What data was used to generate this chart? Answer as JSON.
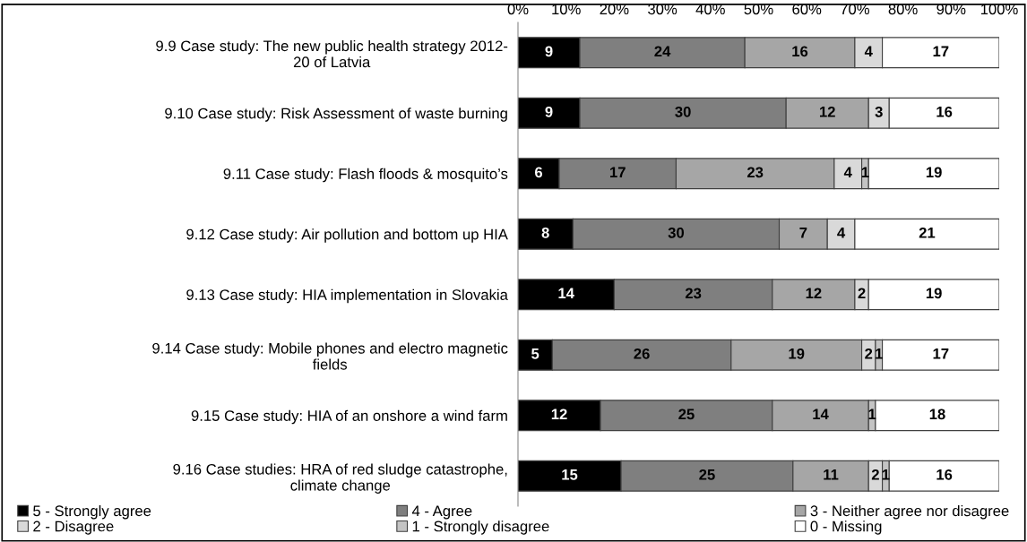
{
  "chart_data": {
    "type": "bar",
    "orientation": "horizontal",
    "stacked": true,
    "data_labels": true,
    "legend": "bottom",
    "tick_labels": "y",
    "categories": [
      "9.9 Case study: The new public health strategy 2012-\n20 of Latvia",
      "9.10 Case study: Risk Assessment of waste burning",
      "9.11 Case study: Flash floods & mosquito’s",
      "9.12 Case study: Air pollution and bottom up HIA",
      "9.13 Case study: HIA implementation in Slovakia",
      "9.14 Case study: Mobile phones and electro magnetic\nfields",
      "9.15 Case study: HIA of an onshore a wind farm",
      "9.16 Case studies: HRA of red sludge catastrophe,\nclimate change"
    ],
    "xlim": [
      0,
      70
    ],
    "x2lim": [
      0,
      100
    ],
    "x2ticks": [
      {
        "value": 0,
        "label": "0%"
      },
      {
        "value": 10,
        "label": "10%"
      },
      {
        "value": 20,
        "label": "20%"
      },
      {
        "value": 30,
        "label": "30%"
      },
      {
        "value": 40,
        "label": "40%"
      },
      {
        "value": 50,
        "label": "50%"
      },
      {
        "value": 60,
        "label": "60%"
      },
      {
        "value": 70,
        "label": "70%"
      },
      {
        "value": 80,
        "label": "80%"
      },
      {
        "value": 90,
        "label": "90%"
      },
      {
        "value": 100,
        "label": "100%"
      }
    ],
    "series": [
      {
        "name": "5 - Strongly agree",
        "color": "#000000",
        "values": [
          9,
          9,
          6,
          8,
          14,
          5,
          12,
          15
        ]
      },
      {
        "name": "4 - Agree",
        "color": "#7f7f7f",
        "values": [
          24,
          30,
          17,
          30,
          23,
          26,
          25,
          25
        ]
      },
      {
        "name": "3 - Neither agree nor disagree",
        "color": "#a6a6a6",
        "values": [
          16,
          12,
          23,
          7,
          12,
          19,
          14,
          11
        ]
      },
      {
        "name": "2 - Disagree",
        "color": "#d9d9d9",
        "values": [
          4,
          3,
          4,
          4,
          2,
          2,
          null,
          2
        ]
      },
      {
        "name": "1 - Strongly disagree",
        "color": "#c4c4c4",
        "values": [
          null,
          null,
          1,
          null,
          null,
          1,
          1,
          1
        ]
      },
      {
        "name": "0 - Missing",
        "color": "#ffffff",
        "values": [
          17,
          16,
          19,
          21,
          19,
          17,
          18,
          16
        ]
      }
    ]
  }
}
